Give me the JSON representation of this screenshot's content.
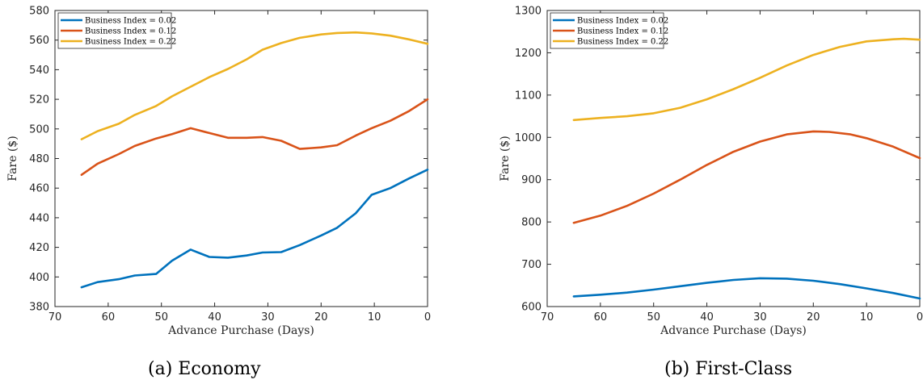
{
  "chart_data": [
    {
      "type": "line",
      "caption": "(a) Economy",
      "xlabel": "Advance Purchase (Days)",
      "ylabel": "Fare ($)",
      "xlim": [
        70,
        0
      ],
      "x_reversed": true,
      "ylim": [
        380,
        580
      ],
      "xticks": [
        70,
        60,
        50,
        40,
        30,
        20,
        10,
        0
      ],
      "yticks": [
        380,
        400,
        420,
        440,
        460,
        480,
        500,
        520,
        540,
        560,
        580
      ],
      "grid": false,
      "legend_position": "top-left",
      "series": [
        {
          "name": "Business Index = 0.02",
          "color": "#0072BD",
          "points": [
            [
              65,
              393
            ],
            [
              62,
              396.5
            ],
            [
              58,
              398.5
            ],
            [
              55,
              401
            ],
            [
              51,
              402
            ],
            [
              48,
              411
            ],
            [
              44.5,
              418.5
            ],
            [
              41,
              413.5
            ],
            [
              37.5,
              413
            ],
            [
              34,
              414.5
            ],
            [
              31,
              416.5
            ],
            [
              27.5,
              416.8
            ],
            [
              24,
              421.5
            ],
            [
              20,
              428
            ],
            [
              17,
              433.2
            ],
            [
              13.5,
              443
            ],
            [
              10.5,
              455.5
            ],
            [
              7,
              460
            ],
            [
              3.5,
              466.5
            ],
            [
              0,
              472.5
            ]
          ]
        },
        {
          "name": "Business Index = 0.12",
          "color": "#D95319",
          "points": [
            [
              65,
              469
            ],
            [
              62,
              476.5
            ],
            [
              58,
              483
            ],
            [
              55,
              488.5
            ],
            [
              51,
              493.5
            ],
            [
              48,
              496.5
            ],
            [
              44.5,
              500.5
            ],
            [
              41,
              497.2
            ],
            [
              37.5,
              494
            ],
            [
              34,
              494
            ],
            [
              31,
              494.5
            ],
            [
              27.5,
              492
            ],
            [
              24,
              486.5
            ],
            [
              20,
              487.5
            ],
            [
              17,
              489
            ],
            [
              13.5,
              495.5
            ],
            [
              10.5,
              500.5
            ],
            [
              7,
              505.5
            ],
            [
              3.5,
              512
            ],
            [
              0,
              520
            ]
          ]
        },
        {
          "name": "Business Index = 0.22",
          "color": "#EDB120",
          "points": [
            [
              65,
              493
            ],
            [
              62,
              498.5
            ],
            [
              58,
              503.5
            ],
            [
              55,
              509.5
            ],
            [
              51,
              515.5
            ],
            [
              48,
              522
            ],
            [
              44.5,
              528.5
            ],
            [
              41,
              535
            ],
            [
              37.5,
              540.5
            ],
            [
              34,
              547
            ],
            [
              31,
              553.5
            ],
            [
              27.5,
              558
            ],
            [
              24,
              561.5
            ],
            [
              20,
              563.8
            ],
            [
              17,
              564.8
            ],
            [
              13.5,
              565.2
            ],
            [
              10.5,
              564.5
            ],
            [
              7,
              563
            ],
            [
              3.5,
              560.5
            ],
            [
              0,
              557.5
            ]
          ]
        }
      ]
    },
    {
      "type": "line",
      "caption": "(b) First-Class",
      "xlabel": "Advance Purchase (Days)",
      "ylabel": "Fare ($)",
      "xlim": [
        70,
        0
      ],
      "x_reversed": true,
      "ylim": [
        600,
        1300
      ],
      "xticks": [
        70,
        60,
        50,
        40,
        30,
        20,
        10,
        0
      ],
      "yticks": [
        600,
        700,
        800,
        900,
        1000,
        1100,
        1200,
        1300
      ],
      "grid": false,
      "legend_position": "top-left",
      "series": [
        {
          "name": "Business Index = 0.02",
          "color": "#0072BD",
          "points": [
            [
              65,
              624
            ],
            [
              60,
              628
            ],
            [
              55,
              633
            ],
            [
              50,
              640
            ],
            [
              45,
              648
            ],
            [
              40,
              656
            ],
            [
              35,
              663
            ],
            [
              30,
              667
            ],
            [
              25,
              666
            ],
            [
              20,
              661
            ],
            [
              15,
              653
            ],
            [
              10,
              643
            ],
            [
              5,
              632
            ],
            [
              0,
              619
            ]
          ]
        },
        {
          "name": "Business Index = 0.12",
          "color": "#D95319",
          "points": [
            [
              65,
              798
            ],
            [
              60,
              815
            ],
            [
              55,
              838
            ],
            [
              50,
              867
            ],
            [
              45,
              900
            ],
            [
              40,
              935
            ],
            [
              35,
              966
            ],
            [
              30,
              990
            ],
            [
              25,
              1007
            ],
            [
              20,
              1014
            ],
            [
              17,
              1013
            ],
            [
              13,
              1007
            ],
            [
              10,
              998
            ],
            [
              5,
              978
            ],
            [
              0,
              951
            ]
          ]
        },
        {
          "name": "Business Index = 0.22",
          "color": "#EDB120",
          "points": [
            [
              65,
              1041
            ],
            [
              60,
              1046
            ],
            [
              55,
              1050
            ],
            [
              50,
              1057
            ],
            [
              45,
              1070
            ],
            [
              40,
              1090
            ],
            [
              35,
              1114
            ],
            [
              30,
              1141
            ],
            [
              25,
              1170
            ],
            [
              20,
              1195
            ],
            [
              15,
              1214
            ],
            [
              10,
              1227
            ],
            [
              5,
              1232
            ],
            [
              3,
              1233
            ],
            [
              0,
              1231
            ]
          ]
        }
      ]
    }
  ]
}
